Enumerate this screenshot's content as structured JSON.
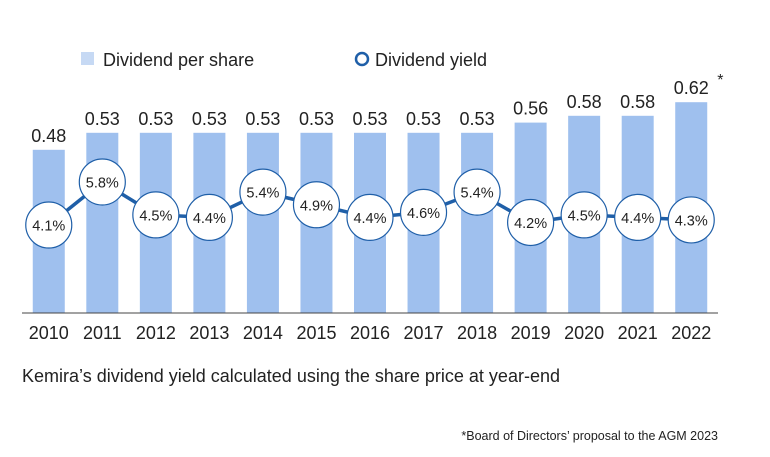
{
  "chart_data": {
    "type": "bar",
    "categories": [
      "2010",
      "2011",
      "2012",
      "2013",
      "2014",
      "2015",
      "2016",
      "2017",
      "2018",
      "2019",
      "2020",
      "2021",
      "2022"
    ],
    "series": [
      {
        "name": "Dividend per share",
        "kind": "bar",
        "values": [
          0.48,
          0.53,
          0.53,
          0.53,
          0.53,
          0.53,
          0.53,
          0.53,
          0.53,
          0.56,
          0.58,
          0.58,
          0.62
        ],
        "labels": [
          "0.48",
          "0.53",
          "0.53",
          "0.53",
          "0.53",
          "0.53",
          "0.53",
          "0.53",
          "0.53",
          "0.56",
          "0.58",
          "0.58",
          "0.62"
        ],
        "color": "#9fc0ee"
      },
      {
        "name": "Dividend yield",
        "kind": "line",
        "values": [
          4.1,
          5.8,
          4.5,
          4.4,
          5.4,
          4.9,
          4.4,
          4.6,
          5.4,
          4.2,
          4.5,
          4.4,
          4.3
        ],
        "labels": [
          "4.1%",
          "5.8%",
          "4.5%",
          "4.4%",
          "5.4%",
          "4.9%",
          "4.4%",
          "4.6%",
          "5.4%",
          "4.2%",
          "4.5%",
          "4.4%",
          "4.3%"
        ],
        "color": "#1f5fa8"
      }
    ],
    "annotations": [
      {
        "category": "2022",
        "text": "*"
      }
    ],
    "legend_position": "top"
  },
  "caption": "Kemira’s dividend yield calculated using the share price at year-end",
  "footnote": "*Board of Directors’ proposal to the AGM 2023",
  "colors": {
    "bar": "#9fc0ee",
    "line": "#1f5fa8",
    "axis": "#444444"
  }
}
